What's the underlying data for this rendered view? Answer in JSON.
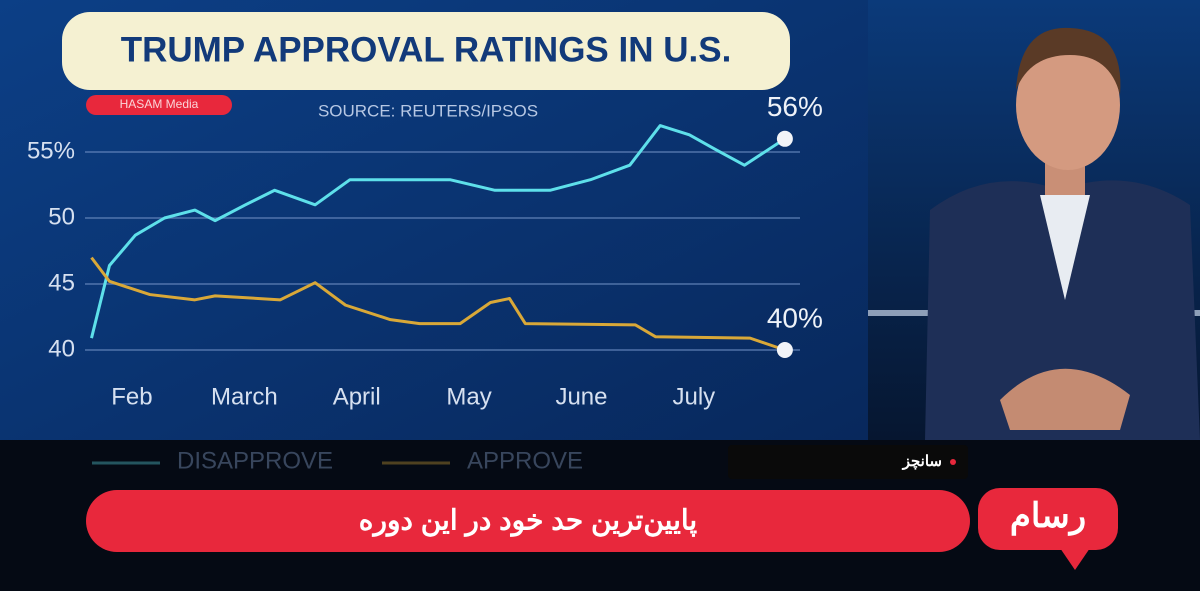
{
  "chart_data": {
    "type": "line",
    "title": "TRUMP APPROVAL RATINGS IN U.S.",
    "subtitle": "SOURCE: REUTERS/IPSOS",
    "watermark": "HASAM Media",
    "xlim": [
      1.6,
      7.9
    ],
    "xticks": [
      {
        "value": 2,
        "label": "Feb"
      },
      {
        "value": 3,
        "label": "March"
      },
      {
        "value": 4,
        "label": "April"
      },
      {
        "value": 5,
        "label": "May"
      },
      {
        "value": 6,
        "label": "June"
      },
      {
        "value": 7,
        "label": "July"
      }
    ],
    "ylim": [
      37.5,
      57.5
    ],
    "yticks": [
      40,
      45,
      50,
      {
        "value": 55,
        "label": "55%"
      }
    ],
    "grid": true,
    "legend": "bottom",
    "series": [
      {
        "name": "DISAPPROVE",
        "color": "#5ee0ea",
        "x": [
          1.64,
          1.8,
          2.03,
          2.29,
          2.56,
          2.74,
          3.01,
          3.27,
          3.63,
          3.94,
          4.38,
          4.83,
          5.23,
          5.72,
          6.08,
          6.43,
          6.7,
          6.96,
          7.19,
          7.45,
          7.81
        ],
        "values": [
          40.9,
          46.4,
          48.7,
          50,
          50.6,
          49.8,
          51,
          52.1,
          51,
          52.9,
          52.9,
          52.9,
          52.1,
          52.1,
          52.9,
          54,
          57,
          56.3,
          55.2,
          54,
          56
        ],
        "value_labels": [
          null,
          null,
          null,
          null,
          null,
          null,
          null,
          null,
          null,
          null,
          null,
          null,
          null,
          null,
          null,
          null,
          null,
          null,
          null,
          null,
          "56%"
        ]
      },
      {
        "name": "APPROVE",
        "color": "#d9a838",
        "x": [
          1.64,
          1.8,
          2.16,
          2.56,
          2.74,
          3.32,
          3.63,
          3.9,
          4.3,
          4.56,
          4.92,
          5.19,
          5.36,
          5.5,
          6.48,
          6.66,
          7.5,
          7.81
        ],
        "values": [
          47,
          45.2,
          44.2,
          43.8,
          44.1,
          43.8,
          45.1,
          43.4,
          42.3,
          42,
          42,
          43.6,
          43.9,
          42,
          41.9,
          41,
          40.9,
          40
        ],
        "value_labels": [
          null,
          null,
          null,
          null,
          null,
          null,
          null,
          null,
          null,
          null,
          null,
          null,
          null,
          null,
          null,
          null,
          null,
          "40%"
        ]
      }
    ]
  },
  "overlay": {
    "name_tag": "سانچز",
    "ticker": "پایین‌ترین حد خود در این دوره",
    "logo": "رسام"
  }
}
